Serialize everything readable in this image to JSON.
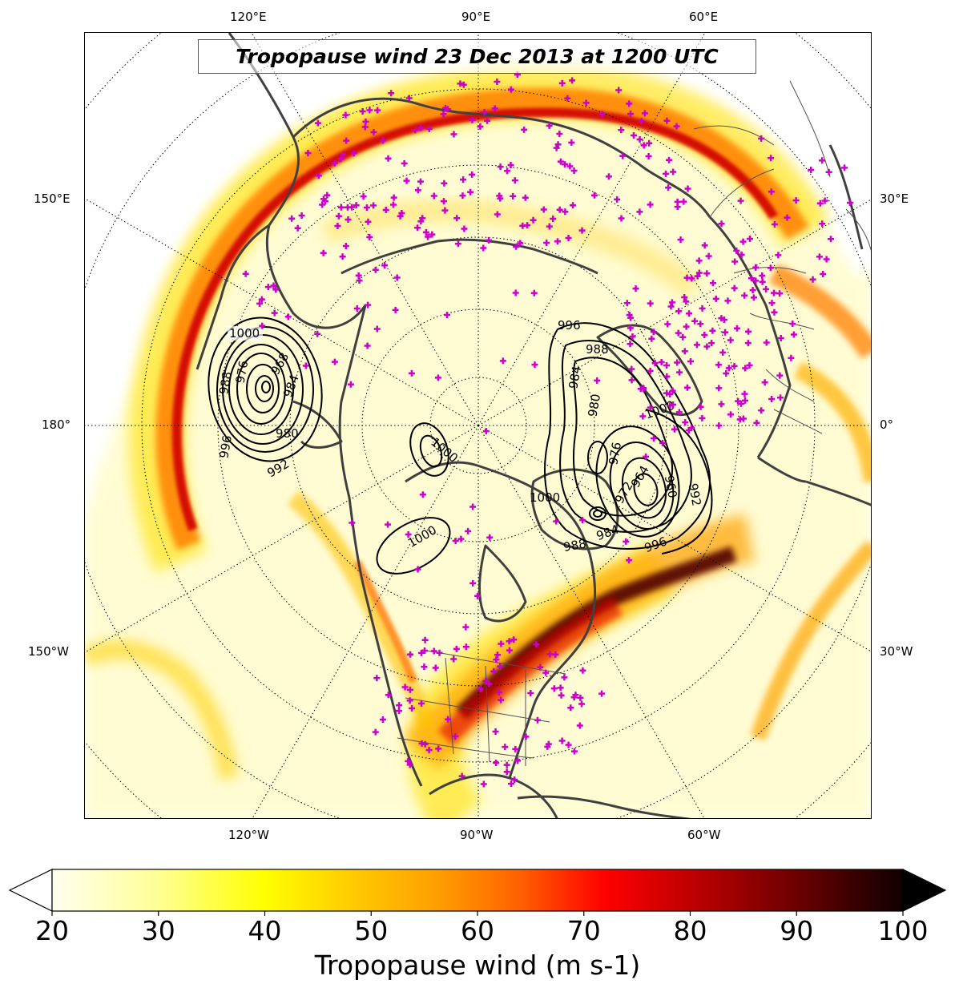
{
  "title": "Tropopause wind 23 Dec 2013 at 1200 UTC",
  "lon_labels": {
    "top": [
      "120°E",
      "90°E",
      "60°E"
    ],
    "left": [
      "150°E",
      "180°",
      "150°W"
    ],
    "right": [
      "30°E",
      "0°",
      "30°W"
    ],
    "bottom": [
      "120°W",
      "90°W",
      "60°W"
    ]
  },
  "pressure_contours": {
    "pacific_low": [
      "1000",
      "988",
      "976",
      "968",
      "984",
      "980",
      "992",
      "996"
    ],
    "north_pole_low": [
      "1000"
    ],
    "canada_low": [
      "1000"
    ],
    "atlantic_low": [
      "996",
      "988",
      "984",
      "980",
      "1000",
      "976",
      "972",
      "964",
      "960",
      "992",
      "996",
      "1000",
      "984",
      "988"
    ]
  },
  "colorbar": {
    "label": "Tropopause wind (m s-1)",
    "min": 20,
    "max": 100,
    "ticks": [
      "20",
      "30",
      "40",
      "50",
      "60",
      "70",
      "80",
      "90",
      "100"
    ],
    "colors": [
      "#ffffff",
      "#ffff80",
      "#ffff00",
      "#ffd000",
      "#ff9000",
      "#ff5000",
      "#ff0000",
      "#c00000",
      "#600000",
      "#000000"
    ],
    "extend": "both"
  },
  "colors": {
    "coastline": "#404040",
    "observation_marker": "#cc00cc",
    "contour": "#000000",
    "graticule": "#000000"
  }
}
